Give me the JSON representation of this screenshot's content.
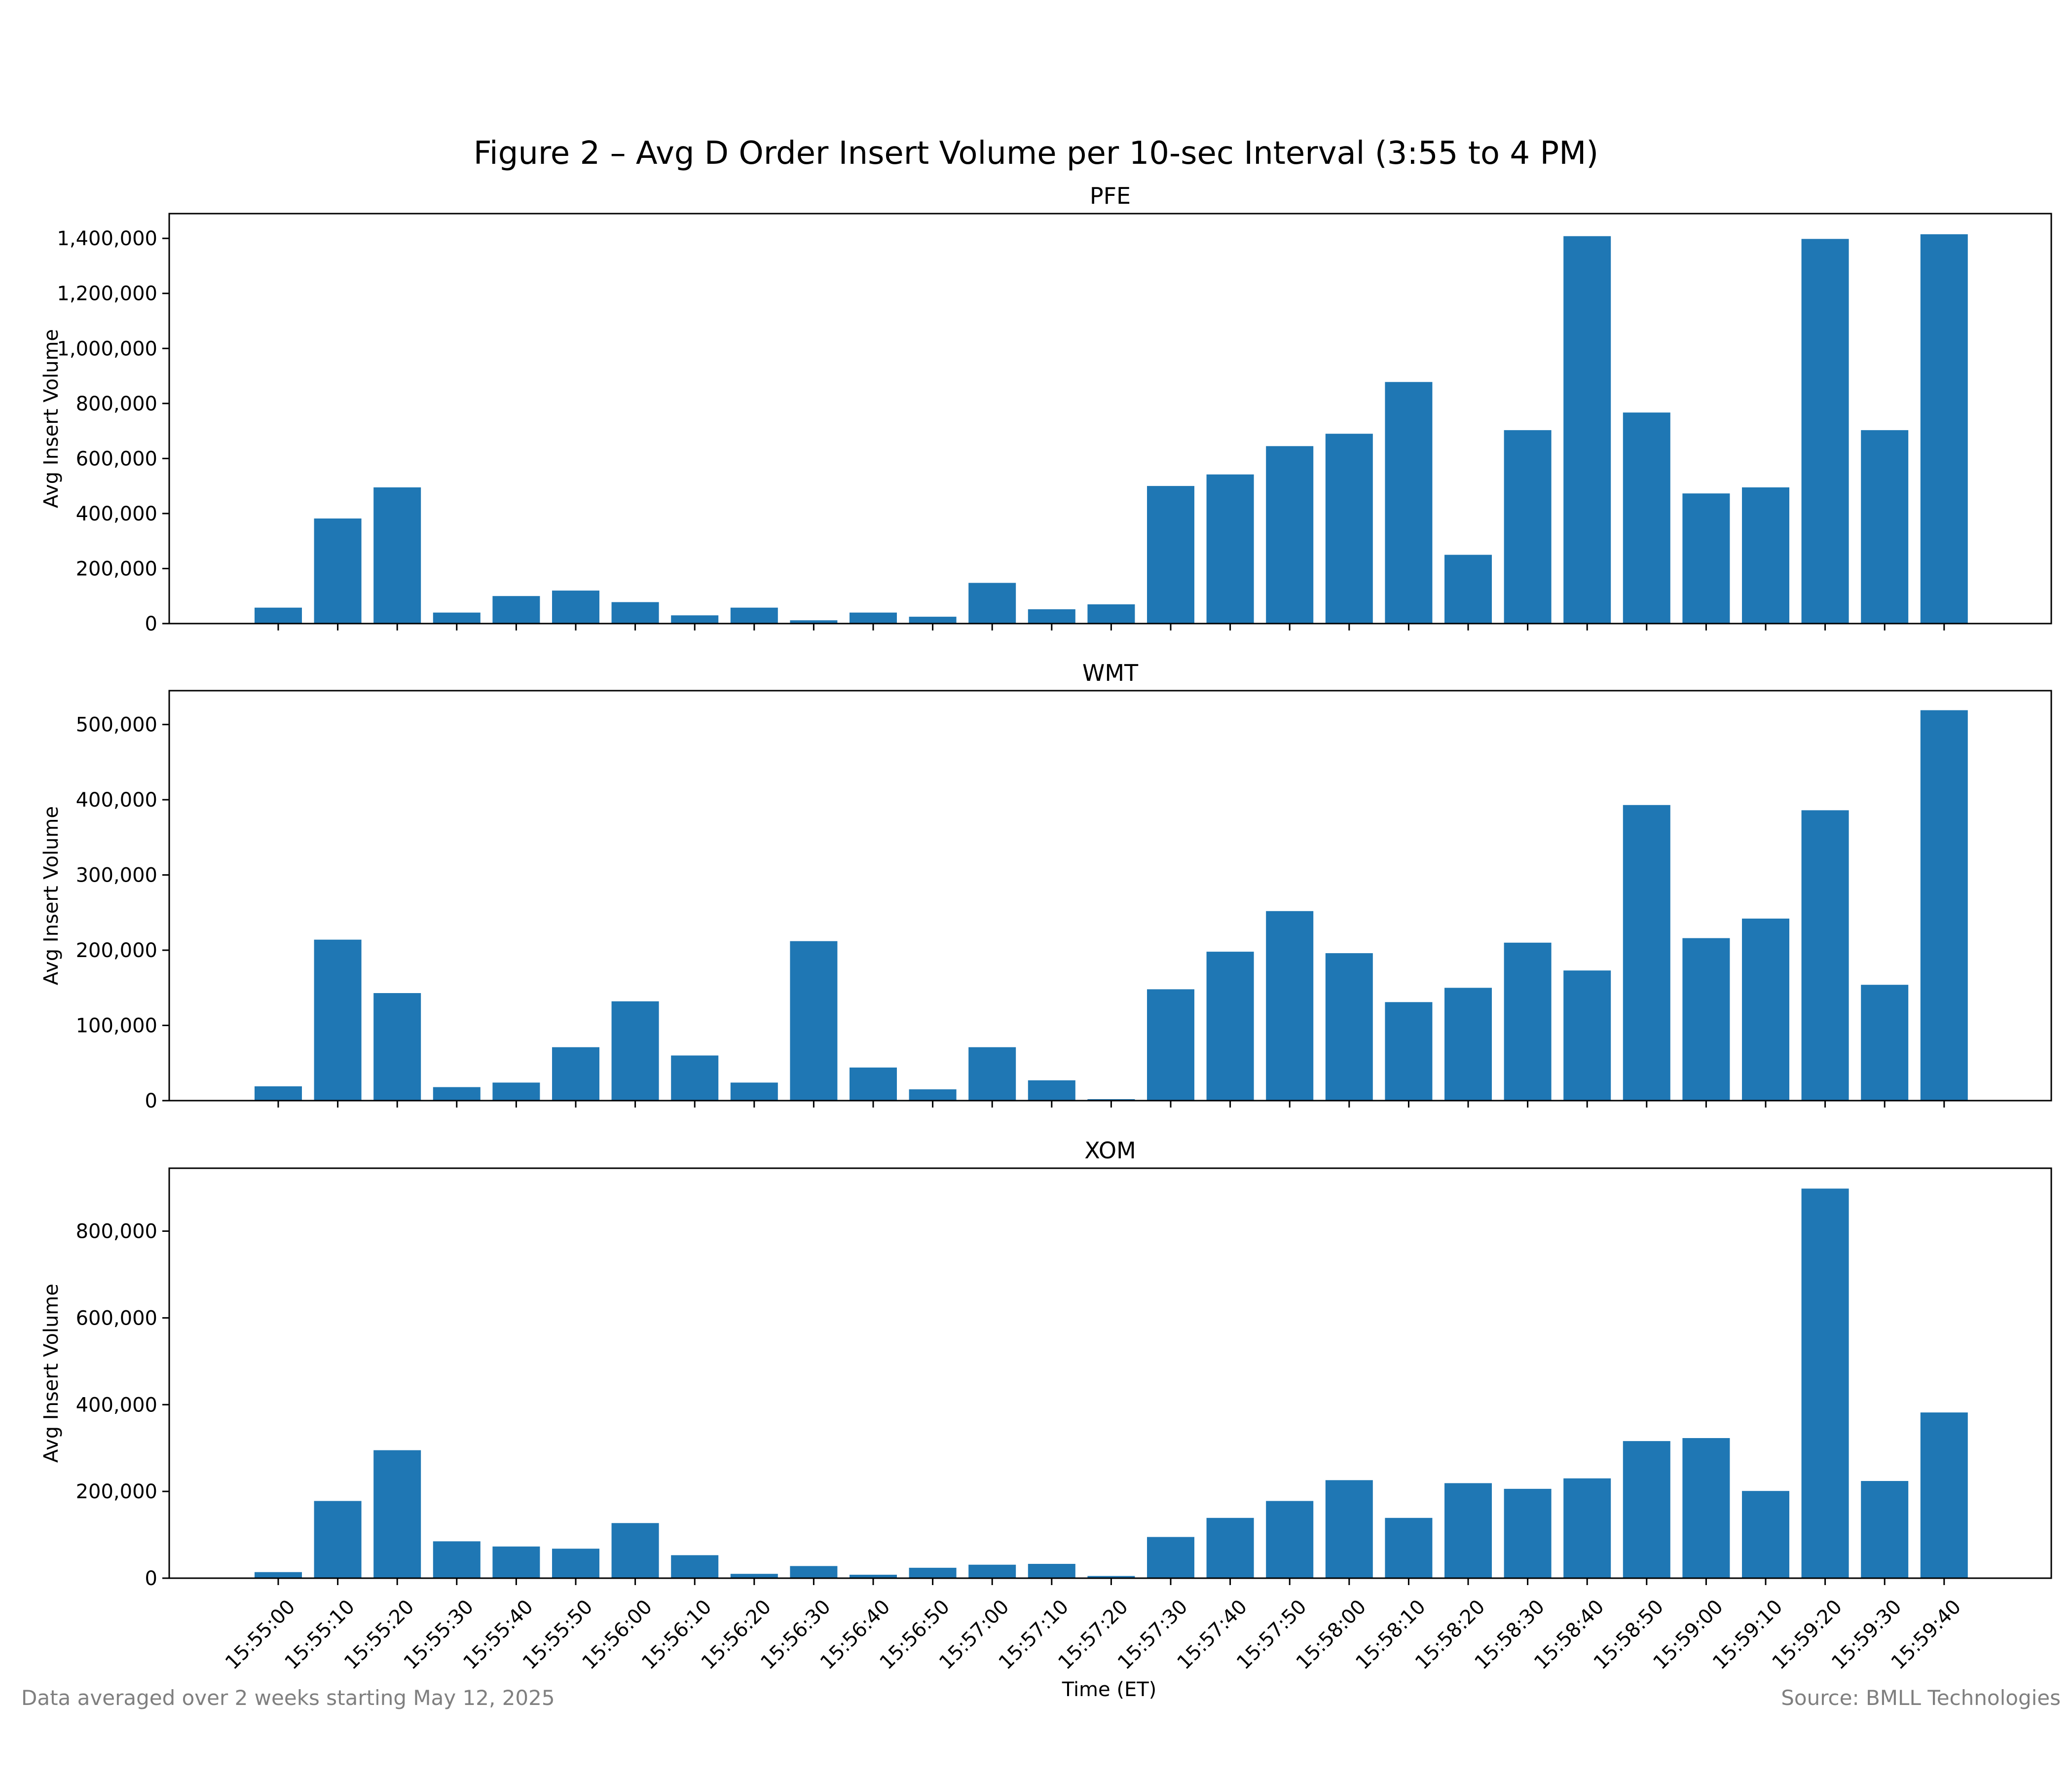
{
  "title": "Figure 2 – Avg D Order Insert Volume per 10-sec Interval (3:55 to 4 PM)",
  "footer_left": "Data averaged over 2 weeks starting May 12, 2025",
  "footer_right": "Source: BMLL Technologies",
  "colors": {
    "bar": "#1f77b4",
    "footer_text": "#7f7f7f",
    "axes": "#000000"
  },
  "chart_data": [
    {
      "type": "bar",
      "title": "PFE",
      "xlabel": "",
      "ylabel": "Avg Insert Volume",
      "ylim": [
        0,
        1490000
      ],
      "yticks": [
        0,
        200000,
        400000,
        600000,
        800000,
        1000000,
        1200000,
        1400000
      ],
      "grid": false,
      "categories": [
        "15:55:00",
        "15:55:10",
        "15:55:20",
        "15:55:30",
        "15:55:40",
        "15:55:50",
        "15:56:00",
        "15:56:10",
        "15:56:20",
        "15:56:30",
        "15:56:40",
        "15:56:50",
        "15:57:00",
        "15:57:10",
        "15:57:20",
        "15:57:30",
        "15:57:40",
        "15:57:50",
        "15:58:00",
        "15:58:10",
        "15:58:20",
        "15:58:30",
        "15:58:40",
        "15:58:50",
        "15:59:00",
        "15:59:10",
        "15:59:20",
        "15:59:30",
        "15:59:40"
      ],
      "values": [
        58000,
        382000,
        495000,
        40000,
        100000,
        120000,
        78000,
        30000,
        58000,
        12000,
        40000,
        25000,
        148000,
        52000,
        70000,
        500000,
        542000,
        645000,
        690000,
        878000,
        250000,
        703000,
        1408000,
        767000,
        473000,
        495000,
        1398000,
        703000,
        1415000
      ]
    },
    {
      "type": "bar",
      "title": "WMT",
      "xlabel": "",
      "ylabel": "Avg Insert Volume",
      "ylim": [
        0,
        545000
      ],
      "yticks": [
        0,
        100000,
        200000,
        300000,
        400000,
        500000
      ],
      "grid": false,
      "categories": [
        "15:55:00",
        "15:55:10",
        "15:55:20",
        "15:55:30",
        "15:55:40",
        "15:55:50",
        "15:56:00",
        "15:56:10",
        "15:56:20",
        "15:56:30",
        "15:56:40",
        "15:56:50",
        "15:57:00",
        "15:57:10",
        "15:57:20",
        "15:57:30",
        "15:57:40",
        "15:57:50",
        "15:58:00",
        "15:58:10",
        "15:58:20",
        "15:58:30",
        "15:58:40",
        "15:58:50",
        "15:59:00",
        "15:59:10",
        "15:59:20",
        "15:59:30",
        "15:59:40"
      ],
      "values": [
        19000,
        214000,
        143000,
        18000,
        24000,
        71000,
        132000,
        60000,
        24000,
        212000,
        44000,
        15000,
        71000,
        27000,
        2000,
        148000,
        198000,
        252000,
        196000,
        131000,
        150000,
        210000,
        173000,
        393000,
        216000,
        242000,
        386000,
        154000,
        519000
      ]
    },
    {
      "type": "bar",
      "title": "XOM",
      "xlabel": "Time (ET)",
      "ylabel": "Avg Insert Volume",
      "ylim": [
        0,
        945000
      ],
      "yticks": [
        0,
        200000,
        400000,
        600000,
        800000
      ],
      "grid": false,
      "categories": [
        "15:55:00",
        "15:55:10",
        "15:55:20",
        "15:55:30",
        "15:55:40",
        "15:55:50",
        "15:56:00",
        "15:56:10",
        "15:56:20",
        "15:56:30",
        "15:56:40",
        "15:56:50",
        "15:57:00",
        "15:57:10",
        "15:57:20",
        "15:57:30",
        "15:57:40",
        "15:57:50",
        "15:58:00",
        "15:58:10",
        "15:58:20",
        "15:58:30",
        "15:58:40",
        "15:58:50",
        "15:59:00",
        "15:59:10",
        "15:59:20",
        "15:59:30",
        "15:59:40"
      ],
      "values": [
        14000,
        178000,
        295000,
        85000,
        73000,
        68000,
        127000,
        53000,
        10000,
        28000,
        8000,
        24000,
        31000,
        33000,
        5000,
        95000,
        139000,
        178000,
        226000,
        139000,
        219000,
        206000,
        230000,
        316000,
        323000,
        201000,
        898000,
        224000,
        382000
      ]
    }
  ]
}
